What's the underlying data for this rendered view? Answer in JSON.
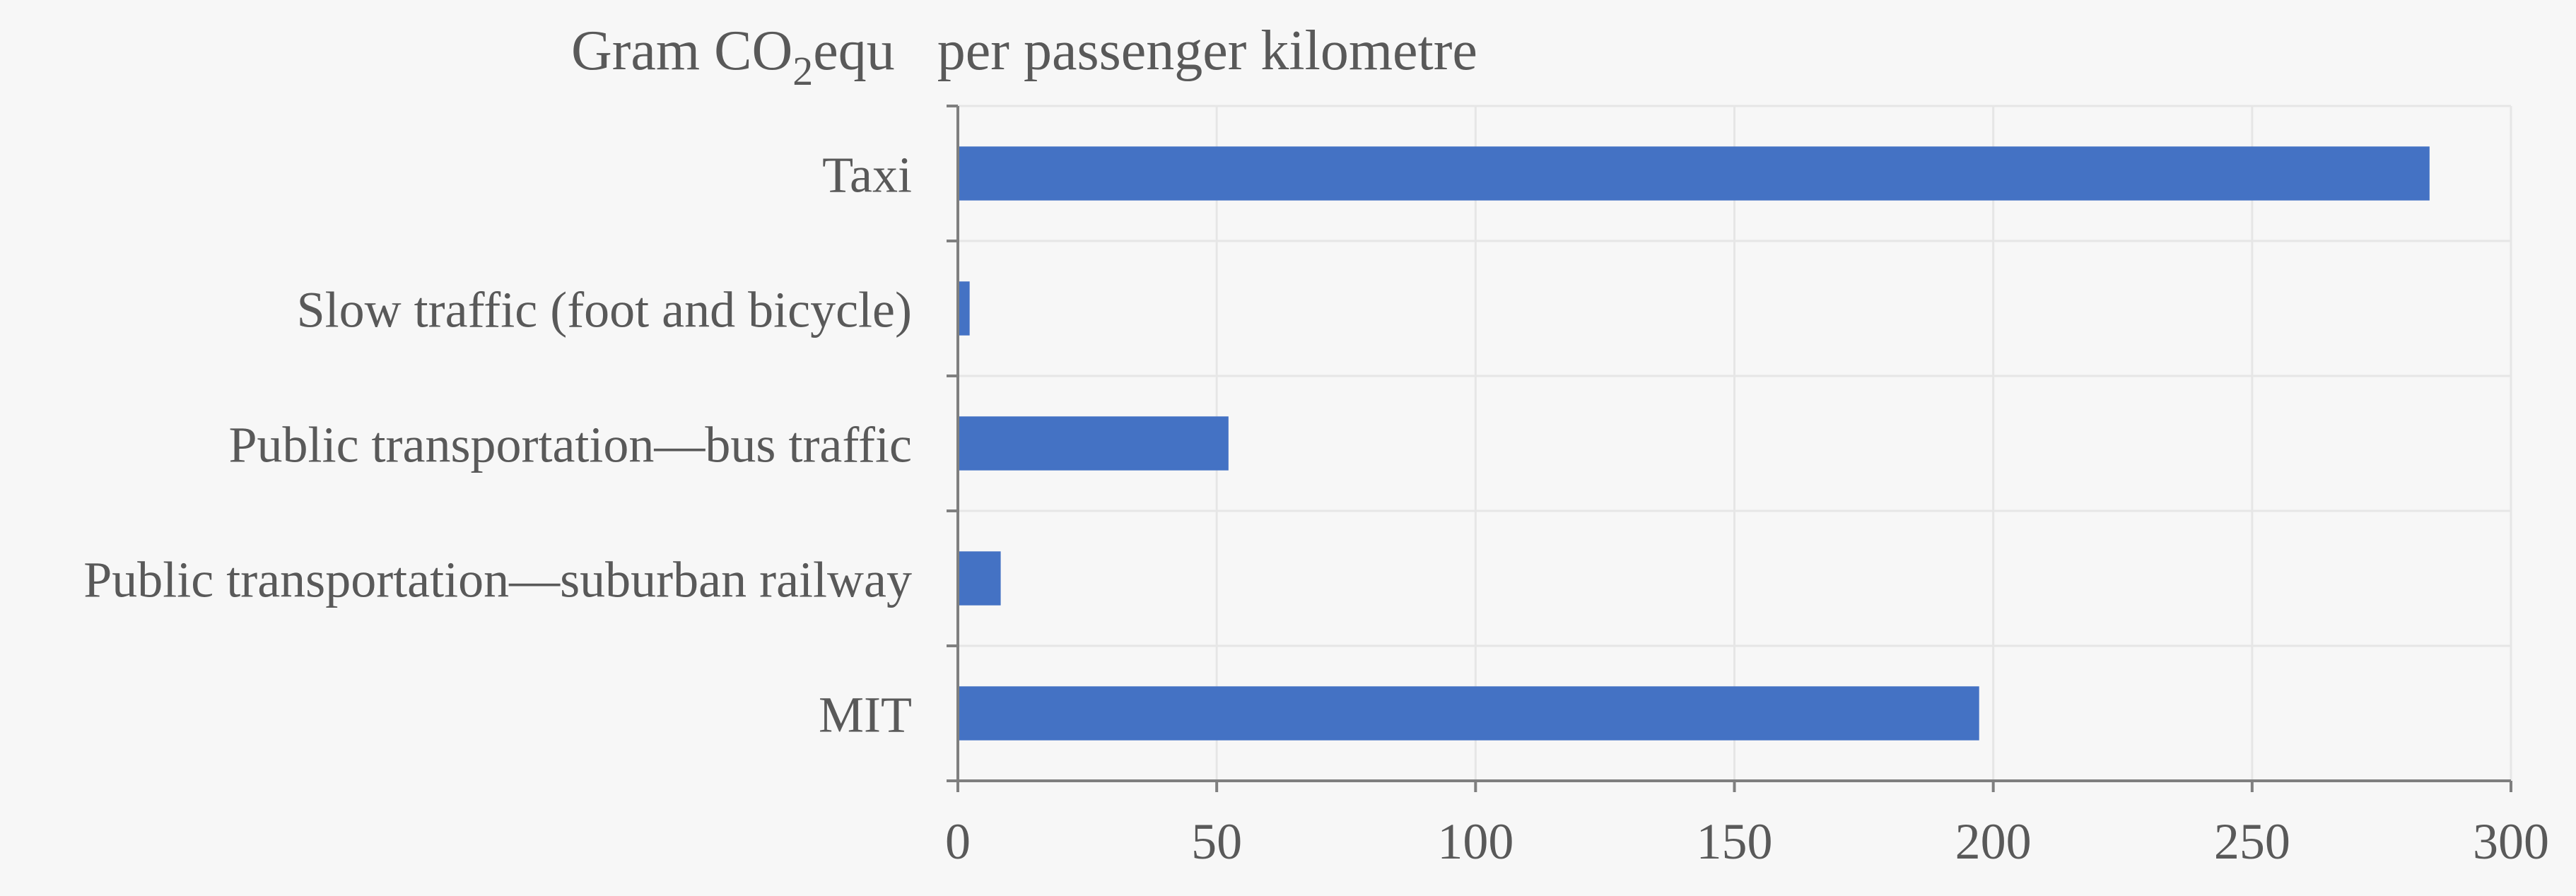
{
  "chart_data": {
    "type": "bar",
    "orientation": "horizontal",
    "title_prefix": "Gram CO",
    "title_subscript": "2",
    "title_suffix": "equ   per passenger kilometre",
    "categories": [
      "Taxi",
      "Slow traffic (foot and bicycle)",
      "Public transportation—bus traffic",
      "Public transportation—suburban railway",
      "MIT"
    ],
    "values": [
      284,
      2,
      52,
      8,
      197
    ],
    "xlim": [
      0,
      300
    ],
    "xticks": [
      "0",
      "50",
      "100",
      "150",
      "200",
      "250",
      "300"
    ],
    "xlabel": "",
    "ylabel": "",
    "grid": true,
    "bar_color": "#4472c4"
  }
}
